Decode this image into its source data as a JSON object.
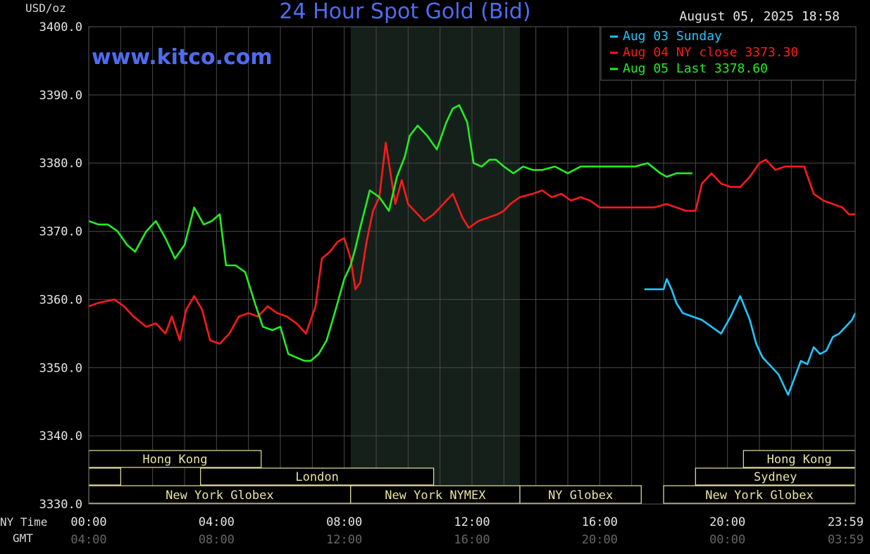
{
  "header": {
    "unit": "USD/oz",
    "title": "24 Hour Spot Gold (Bid)",
    "timestamp": "August 05, 2025 18:58",
    "watermark": "www.kitco.com"
  },
  "axis": {
    "nytime_label": "NY Time",
    "gmt_label": "GMT",
    "x_ticks": [
      {
        "ny": "00:00",
        "gmt": "04:00",
        "t": 0
      },
      {
        "ny": "04:00",
        "gmt": "08:00",
        "t": 4
      },
      {
        "ny": "08:00",
        "gmt": "12:00",
        "t": 8
      },
      {
        "ny": "12:00",
        "gmt": "16:00",
        "t": 12
      },
      {
        "ny": "16:00",
        "gmt": "20:00",
        "t": 16
      },
      {
        "ny": "20:00",
        "gmt": "00:00",
        "t": 20
      },
      {
        "ny": "23:59",
        "gmt": "03:59",
        "t": 23.983
      }
    ]
  },
  "legend": [
    {
      "text": "Aug 03 Sunday",
      "color": "#1ec8ff"
    },
    {
      "text": "Aug 04 NY close 3373.30",
      "color": "#ff1a1a"
    },
    {
      "text": "Aug 05 Last 3378.60",
      "color": "#22ee22"
    }
  ],
  "sessions": {
    "color": "#e8e4a0",
    "row1": [
      {
        "label": "Hong Kong",
        "start": 0,
        "end": 5.4
      },
      {
        "label": "Hong Kong",
        "start": 20.5,
        "end": 24
      }
    ],
    "row2": [
      {
        "label": "",
        "start": 0,
        "end": 1
      },
      {
        "label": "London",
        "start": 3.5,
        "end": 10.8
      },
      {
        "label": "Sydney",
        "start": 19,
        "end": 24
      }
    ],
    "row3": [
      {
        "label": "New York Globex",
        "start": 0,
        "end": 8.2
      },
      {
        "label": "New York NYMEX",
        "start": 8.2,
        "end": 13.5
      },
      {
        "label": "NY Globex",
        "start": 13.5,
        "end": 17.3
      },
      {
        "label": "New York Globex",
        "start": 18,
        "end": 24
      }
    ]
  },
  "chart_data": {
    "type": "line",
    "xlabel": "NY Time",
    "ylabel": "USD/oz",
    "title": "24 Hour Spot Gold (Bid)",
    "xlim": [
      0,
      24
    ],
    "ylim": [
      3330,
      3400
    ],
    "y_ticks": [
      3330.0,
      3340.0,
      3350.0,
      3360.0,
      3370.0,
      3380.0,
      3390.0,
      3400.0
    ],
    "grid": true,
    "legend_position": "top-right",
    "highlight_region": [
      8.2,
      13.5
    ],
    "series": [
      {
        "name": "Aug 03 Sunday",
        "color": "#1ec8ff",
        "x": [
          17.4,
          17.9,
          18.0,
          18.1,
          18.25,
          18.4,
          18.6,
          18.9,
          19.2,
          19.5,
          19.8,
          20.1,
          20.4,
          20.7,
          20.9,
          21.1,
          21.3,
          21.6,
          21.9,
          22.1,
          22.3,
          22.5,
          22.7,
          22.9,
          23.1,
          23.3,
          23.5,
          23.7,
          23.9,
          24.0
        ],
        "y": [
          3361.5,
          3361.5,
          3361.5,
          3363,
          3361.5,
          3359.5,
          3358,
          3357.5,
          3357,
          3356,
          3355,
          3357.5,
          3360.5,
          3357,
          3353.5,
          3351.5,
          3350.5,
          3349,
          3346,
          3348.5,
          3351,
          3350.5,
          3353,
          3352,
          3352.5,
          3354.5,
          3355,
          3356,
          3357,
          3358
        ]
      },
      {
        "name": "Aug 04 NY close",
        "color": "#ff1a1a",
        "x": [
          0.0,
          0.3,
          0.8,
          1.1,
          1.4,
          1.8,
          2.1,
          2.4,
          2.6,
          2.85,
          3.05,
          3.3,
          3.55,
          3.8,
          4.1,
          4.4,
          4.7,
          5.0,
          5.3,
          5.6,
          5.9,
          6.2,
          6.5,
          6.8,
          7.1,
          7.3,
          7.55,
          7.8,
          8.0,
          8.2,
          8.35,
          8.5,
          8.7,
          8.9,
          9.1,
          9.3,
          9.6,
          9.8,
          10.0,
          10.2,
          10.5,
          10.8,
          11.1,
          11.4,
          11.7,
          11.9,
          12.2,
          12.5,
          12.8,
          13.0,
          13.2,
          13.5,
          13.9,
          14.2,
          14.5,
          14.8,
          15.1,
          15.4,
          15.7,
          16.0,
          16.3,
          16.6,
          16.9,
          17.3,
          17.7,
          18.1,
          18.4,
          18.7,
          19.0,
          19.2,
          19.5,
          19.8,
          20.1,
          20.4,
          20.7,
          21.0,
          21.2,
          21.5,
          21.8,
          22.1,
          22.4,
          22.7,
          23.0,
          23.3,
          23.6,
          23.8,
          24.0
        ],
        "y": [
          3359,
          3359.5,
          3360,
          3359,
          3357.5,
          3356,
          3356.5,
          3355,
          3357.5,
          3354,
          3358.5,
          3360.5,
          3358.5,
          3354,
          3353.5,
          3355,
          3357.5,
          3358,
          3357.5,
          3359,
          3358,
          3357.5,
          3356.5,
          3355,
          3359,
          3366,
          3367,
          3368.5,
          3369,
          3366,
          3361.5,
          3362.5,
          3368.5,
          3373,
          3375,
          3383,
          3374,
          3377.5,
          3374,
          3373,
          3371.5,
          3372.5,
          3374,
          3375.5,
          3372,
          3370.5,
          3371.5,
          3372,
          3372.5,
          3373,
          3374,
          3375,
          3375.5,
          3376,
          3375,
          3375.5,
          3374.5,
          3375,
          3374.5,
          3373.5,
          3373.5,
          3373.5,
          3373.5,
          3373.5,
          3373.5,
          3374,
          3373.5,
          3373,
          3373,
          3377,
          3378.5,
          3377,
          3376.5,
          3376.5,
          3378,
          3380,
          3380.5,
          3379,
          3379.5,
          3379.5,
          3379.5,
          3375.5,
          3374.5,
          3374,
          3373.5,
          3372.5,
          3372.5
        ]
      },
      {
        "name": "Aug 05 Last",
        "color": "#22ee22",
        "x": [
          0.0,
          0.3,
          0.6,
          0.9,
          1.2,
          1.45,
          1.8,
          2.1,
          2.4,
          2.7,
          3.0,
          3.3,
          3.6,
          3.85,
          4.1,
          4.3,
          4.6,
          4.9,
          5.2,
          5.45,
          5.75,
          6.0,
          6.25,
          6.5,
          6.75,
          6.95,
          7.2,
          7.45,
          7.7,
          8.0,
          8.2,
          8.35,
          8.5,
          8.8,
          9.1,
          9.4,
          9.65,
          9.9,
          10.05,
          10.3,
          10.6,
          10.9,
          11.2,
          11.4,
          11.6,
          11.85,
          12.05,
          12.3,
          12.55,
          12.75,
          13.0,
          13.3,
          13.6,
          13.9,
          14.2,
          14.6,
          15.0,
          15.4,
          15.8,
          16.2,
          16.5,
          16.8,
          17.1,
          17.5,
          17.9,
          18.1,
          18.4,
          18.7,
          18.9
        ],
        "y": [
          3371.5,
          3371,
          3371,
          3370,
          3368,
          3367,
          3370,
          3371.5,
          3369,
          3366,
          3368,
          3373.5,
          3371,
          3371.5,
          3372.5,
          3365,
          3365,
          3364,
          3359.5,
          3356,
          3355.5,
          3356,
          3352,
          3351.5,
          3351,
          3351,
          3352,
          3354,
          3358,
          3363,
          3365,
          3367.5,
          3370.5,
          3376,
          3375,
          3373,
          3378,
          3381,
          3384,
          3385.5,
          3384,
          3382,
          3386,
          3388,
          3388.5,
          3386,
          3380,
          3379.5,
          3380.5,
          3380.5,
          3379.5,
          3378.5,
          3379.5,
          3379,
          3379,
          3379.5,
          3378.5,
          3379.5,
          3379.5,
          3379.5,
          3379.5,
          3379.5,
          3379.5,
          3380,
          3378.5,
          3378,
          3378.5,
          3378.5,
          3378.5
        ]
      }
    ]
  }
}
